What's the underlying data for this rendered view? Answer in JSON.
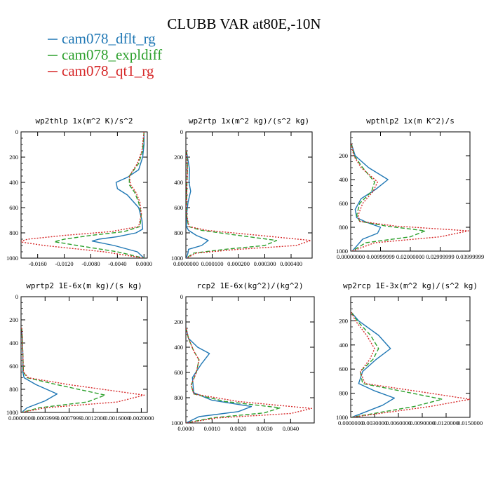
{
  "figure": {
    "title": "CLUBB VAR at80E,-10N"
  },
  "legend": [
    {
      "label": "cam078_dflt_rg",
      "color": "#1f77b4",
      "dash": "solid"
    },
    {
      "label": "cam078_expldiff",
      "color": "#2ca02c",
      "dash": "dashed"
    },
    {
      "label": "cam078_qt1_rg",
      "color": "#d62728",
      "dash": "dotted"
    }
  ],
  "chart_data": [
    {
      "type": "line",
      "title": "wp2thlp  1x(m^2 K)/s^2",
      "xlim": [
        -0.0185,
        0.0005
      ],
      "ylim": [
        1000,
        0
      ],
      "xticks": [
        -0.016,
        -0.012,
        -0.008,
        -0.004,
        0.0
      ],
      "xticklabels": [
        "-0.0160",
        "-0.0120",
        "-0.0080",
        "-0.0040",
        "0.0000"
      ],
      "yticks": [
        0,
        200,
        400,
        600,
        800,
        1000
      ],
      "yticklabels": [
        "0",
        "200",
        "400",
        "600",
        "800",
        "1000"
      ],
      "series": [
        {
          "name": "cam078_dflt_rg",
          "x": [
            0,
            0,
            -0.0002,
            -0.0008,
            -0.0025,
            -0.0042,
            -0.004,
            -0.0025,
            -0.0008,
            -0.0003,
            -0.0002,
            -0.0012,
            -0.004,
            -0.0068,
            -0.0078,
            -0.0045,
            -0.001,
            0
          ],
          "y": [
            0,
            100,
            200,
            300,
            360,
            400,
            450,
            500,
            600,
            700,
            770,
            800,
            830,
            850,
            865,
            900,
            950,
            1000
          ]
        },
        {
          "name": "cam078_expldiff",
          "x": [
            0,
            -0.0002,
            -0.0008,
            -0.0022,
            -0.0022,
            -0.0014,
            -0.0008,
            -0.0004,
            -0.0006,
            -0.003,
            -0.008,
            -0.012,
            -0.0135,
            -0.01,
            -0.004,
            0
          ],
          "y": [
            0,
            150,
            250,
            350,
            420,
            480,
            560,
            650,
            750,
            790,
            820,
            850,
            870,
            900,
            950,
            1000
          ]
        },
        {
          "name": "cam078_qt1_rg",
          "x": [
            0,
            -0.0003,
            -0.001,
            -0.0022,
            -0.002,
            -0.0012,
            -0.0006,
            -0.0004,
            -0.0008,
            -0.005,
            -0.012,
            -0.0175,
            -0.0188,
            -0.015,
            -0.006,
            0
          ],
          "y": [
            0,
            150,
            250,
            350,
            420,
            480,
            560,
            650,
            750,
            790,
            820,
            850,
            870,
            900,
            950,
            1000
          ]
        }
      ]
    },
    {
      "type": "line",
      "title": "wp2rtp  1x(m^2 kg)/(s^2 kg)",
      "xlim": [
        0,
        0.00048
      ],
      "ylim": [
        1000,
        0
      ],
      "xticks": [
        0,
        0.0001,
        0.0002,
        0.0003,
        0.0004
      ],
      "xticklabels": [
        "0.0000000",
        "0.000100",
        "0.000200",
        "0.000300",
        "0.000400"
      ],
      "yticks": [
        0,
        200,
        400,
        600,
        800,
        1000
      ],
      "yticklabels": [
        "0",
        "200",
        "400",
        "600",
        "800",
        "1000"
      ],
      "series": [
        {
          "name": "cam078_dflt_rg",
          "x": [
            2e-06,
            6e-06,
            1.4e-05,
            1.2e-05,
            1.8e-05,
            8e-06,
            3e-06,
            2e-06,
            1e-05,
            4e-05,
            8.5e-05,
            6e-05,
            1e-05,
            8e-06,
            1e-06
          ],
          "y": [
            150,
            200,
            300,
            400,
            470,
            560,
            650,
            750,
            780,
            820,
            860,
            900,
            930,
            960,
            1000
          ]
        },
        {
          "name": "cam078_expldiff",
          "x": [
            2e-06,
            5e-06,
            6e-06,
            4e-06,
            3e-06,
            2e-06,
            1e-05,
            6e-05,
            0.0002,
            0.000345,
            0.0003,
            0.00015,
            3e-05,
            1e-06
          ],
          "y": [
            150,
            200,
            300,
            400,
            500,
            650,
            750,
            780,
            820,
            860,
            900,
            930,
            960,
            1000
          ]
        },
        {
          "name": "cam078_qt1_rg",
          "x": [
            2e-06,
            4e-06,
            6e-06,
            4e-06,
            3e-06,
            2e-06,
            1.2e-05,
            8e-05,
            0.00028,
            0.000475,
            0.00042,
            0.0002,
            4e-05,
            1e-06
          ],
          "y": [
            150,
            200,
            300,
            400,
            500,
            650,
            750,
            780,
            820,
            860,
            900,
            930,
            960,
            1000
          ]
        }
      ]
    },
    {
      "type": "line",
      "title": "wpthlp2  1x(m K^2)/s",
      "xlim": [
        0,
        0.04
      ],
      "ylim": [
        1000,
        0
      ],
      "xticks": [
        0,
        0.01,
        0.02,
        0.03,
        0.04
      ],
      "xticklabels": [
        "0.00000000",
        "0.00999999",
        "0.02000000",
        "0.02999999",
        "0.03999999"
      ],
      "yticks": [
        200,
        400,
        600,
        800,
        1000
      ],
      "yticklabels": [
        "200",
        "400",
        "600",
        "800",
        "1000"
      ],
      "series": [
        {
          "name": "cam078_dflt_rg",
          "x": [
            0.0002,
            0.0015,
            0.006,
            0.0125,
            0.0085,
            0.0035,
            0.0015,
            0.002,
            0.0055,
            0.01,
            0.009,
            0.004,
            0.0005
          ],
          "y": [
            100,
            200,
            300,
            400,
            480,
            560,
            650,
            720,
            760,
            800,
            850,
            900,
            1000
          ]
        },
        {
          "name": "cam078_expldiff",
          "x": [
            0.0002,
            0.0012,
            0.004,
            0.008,
            0.007,
            0.003,
            0.002,
            0.003,
            0.012,
            0.025,
            0.02,
            0.005,
            0.0005
          ],
          "y": [
            100,
            200,
            300,
            420,
            500,
            600,
            700,
            750,
            790,
            830,
            880,
            930,
            1000
          ]
        },
        {
          "name": "cam078_qt1_rg",
          "x": [
            0.0002,
            0.001,
            0.0035,
            0.009,
            0.0075,
            0.004,
            0.0025,
            0.003,
            0.015,
            0.0395,
            0.03,
            0.008,
            0.0005
          ],
          "y": [
            100,
            200,
            300,
            420,
            500,
            600,
            700,
            750,
            790,
            830,
            880,
            930,
            1000
          ]
        }
      ]
    },
    {
      "type": "line",
      "title": "wprtp2  1E-6x(m kg)/(s kg)",
      "xlim": [
        0,
        0.0021
      ],
      "ylim": [
        1000,
        0
      ],
      "xticks": [
        0,
        0.0004,
        0.0008,
        0.0012,
        0.0016,
        0.002
      ],
      "xticklabels": [
        "0.0000000",
        "0.0003999",
        "0.0007999",
        "0.0012000",
        "0.0016000",
        "0.0020000"
      ],
      "yticks": [
        0,
        200,
        400,
        600,
        800,
        1000
      ],
      "yticklabels": [
        "0",
        "200",
        "400",
        "600",
        "800",
        "1000"
      ],
      "series": [
        {
          "name": "cam078_dflt_rg",
          "x": [
            1e-05,
            2e-05,
            3e-05,
            3e-05,
            5e-05,
            0.00025,
            0.0006,
            0.0004,
            0.0001,
            1e-05
          ],
          "y": [
            270,
            350,
            500,
            650,
            700,
            760,
            840,
            900,
            960,
            1000
          ]
        },
        {
          "name": "cam078_expldiff",
          "x": [
            1e-05,
            2e-05,
            3e-05,
            4e-05,
            0.0001,
            0.0006,
            0.0014,
            0.0011,
            0.0003,
            1e-05
          ],
          "y": [
            270,
            350,
            500,
            650,
            700,
            760,
            850,
            910,
            960,
            1000
          ]
        },
        {
          "name": "cam078_qt1_rg",
          "x": [
            1e-05,
            2e-05,
            3e-05,
            4e-05,
            0.00012,
            0.0008,
            0.00205,
            0.0016,
            0.0004,
            1e-05
          ],
          "y": [
            270,
            350,
            500,
            650,
            700,
            760,
            850,
            910,
            960,
            1000
          ]
        }
      ]
    },
    {
      "type": "line",
      "title": "rcp2  1E-6x(kg^2)/(kg^2)",
      "xlim": [
        0,
        0.0049
      ],
      "ylim": [
        1000,
        0
      ],
      "xticks": [
        0,
        0.001,
        0.002,
        0.003,
        0.004
      ],
      "xticklabels": [
        "0.0000",
        "0.0010",
        "0.0020",
        "0.0030",
        "0.0040"
      ],
      "yticks": [
        0,
        200,
        400,
        600,
        800,
        1000
      ],
      "yticklabels": [
        "0",
        "200",
        "400",
        "600",
        "800",
        "1000"
      ],
      "series": [
        {
          "name": "cam078_dflt_rg",
          "x": [
            1e-05,
            0.0001,
            0.00045,
            0.0009,
            0.0006,
            0.00025,
            0.0003,
            0.001,
            0.0025,
            0.002,
            0.0005,
            1e-05
          ],
          "y": [
            250,
            330,
            400,
            450,
            530,
            640,
            760,
            820,
            870,
            910,
            950,
            1000
          ]
        },
        {
          "name": "cam078_expldiff",
          "x": [
            1e-05,
            0.0001,
            0.0003,
            0.0005,
            0.0004,
            0.0002,
            0.0003,
            0.0015,
            0.0036,
            0.003,
            0.001,
            1e-05
          ],
          "y": [
            250,
            330,
            430,
            500,
            600,
            700,
            770,
            830,
            880,
            920,
            960,
            1000
          ]
        },
        {
          "name": "cam078_qt1_rg",
          "x": [
            1e-05,
            0.0001,
            0.0003,
            0.0005,
            0.0004,
            0.0002,
            0.0003,
            0.002,
            0.0048,
            0.004,
            0.0012,
            1e-05
          ],
          "y": [
            250,
            330,
            430,
            500,
            600,
            700,
            770,
            830,
            885,
            925,
            960,
            1000
          ]
        }
      ]
    },
    {
      "type": "line",
      "title": "wp2rcp  1E-3x(m^2 kg)/(s^2 kg)",
      "xlim": [
        0,
        0.015
      ],
      "ylim": [
        1000,
        0
      ],
      "xticks": [
        0,
        0.003,
        0.006,
        0.009,
        0.012,
        0.015
      ],
      "xticklabels": [
        "0.0000000",
        "0.0030000",
        "0.0060000",
        "0.0090000",
        "0.0120000",
        "0.0150000"
      ],
      "yticks": [
        200,
        400,
        600,
        800,
        1000
      ],
      "yticklabels": [
        "200",
        "400",
        "600",
        "800",
        "1000"
      ],
      "series": [
        {
          "name": "cam078_dflt_rg",
          "x": [
            0.0001,
            0.001,
            0.0035,
            0.005,
            0.0032,
            0.0015,
            0.001,
            0.003,
            0.0055,
            0.004,
            0.0001
          ],
          "y": [
            130,
            200,
            320,
            430,
            520,
            620,
            720,
            780,
            840,
            900,
            1000
          ]
        },
        {
          "name": "cam078_expldiff",
          "x": [
            0.0001,
            0.0008,
            0.0025,
            0.0035,
            0.0028,
            0.0012,
            0.0015,
            0.007,
            0.0115,
            0.008,
            0.0001
          ],
          "y": [
            130,
            200,
            320,
            430,
            520,
            620,
            720,
            790,
            850,
            910,
            1000
          ]
        },
        {
          "name": "cam078_qt1_rg",
          "x": [
            0.0001,
            0.0006,
            0.002,
            0.003,
            0.0024,
            0.0012,
            0.0018,
            0.009,
            0.015,
            0.01,
            0.0001
          ],
          "y": [
            130,
            200,
            320,
            430,
            520,
            620,
            720,
            790,
            850,
            910,
            1000
          ]
        }
      ]
    }
  ]
}
